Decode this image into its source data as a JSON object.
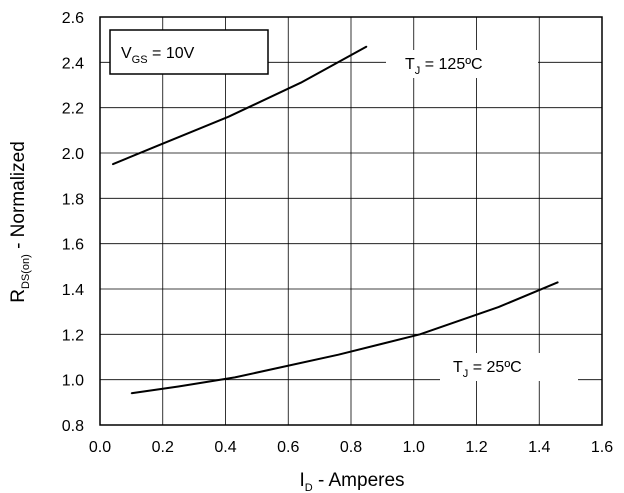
{
  "chart_data": {
    "type": "line",
    "x_label": {
      "main": "I",
      "sub": "D",
      "rest": " - Amperes"
    },
    "y_label": {
      "main": "R",
      "sub": "DS(on)",
      "rest": " - Normalized"
    },
    "xlim": [
      0.0,
      1.6
    ],
    "ylim": [
      0.8,
      2.6
    ],
    "x_ticks": [
      "0.0",
      "0.2",
      "0.4",
      "0.6",
      "0.8",
      "1.0",
      "1.2",
      "1.4",
      "1.6"
    ],
    "y_ticks": [
      "0.8",
      "1.0",
      "1.2",
      "1.4",
      "1.6",
      "1.8",
      "2.0",
      "2.2",
      "2.4",
      "2.6"
    ],
    "grid": true,
    "condition_box": {
      "main": "V",
      "sub": "GS",
      "rest": " = 10V"
    },
    "series": [
      {
        "label": {
          "main": "T",
          "sub": "J",
          "rest": " = 125ºC"
        },
        "points": [
          [
            0.04,
            1.95
          ],
          [
            0.18,
            2.03
          ],
          [
            0.41,
            2.16
          ],
          [
            0.64,
            2.31
          ],
          [
            0.85,
            2.47
          ]
        ]
      },
      {
        "label": {
          "main": "T",
          "sub": "J",
          "rest": " = 25ºC"
        },
        "points": [
          [
            0.1,
            0.94
          ],
          [
            0.25,
            0.97
          ],
          [
            0.43,
            1.01
          ],
          [
            0.76,
            1.11
          ],
          [
            1.02,
            1.2
          ],
          [
            1.27,
            1.32
          ],
          [
            1.46,
            1.43
          ]
        ]
      }
    ]
  }
}
